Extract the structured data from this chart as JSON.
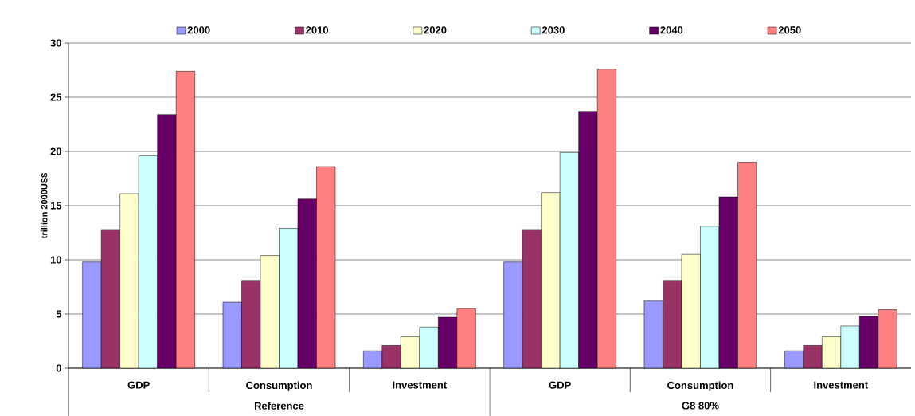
{
  "chart_data": {
    "type": "bar",
    "ylabel": "trillion 2000US$",
    "categories": [
      "GDP",
      "Consumption",
      "Investment",
      "GDP",
      "Consumption",
      "Investment"
    ],
    "series": [
      {
        "name": "2000",
        "color": "#9999ff",
        "values": [
          9.8,
          6.1,
          1.6,
          9.8,
          6.2,
          1.6
        ]
      },
      {
        "name": "2010",
        "color": "#993366",
        "values": [
          12.8,
          8.1,
          2.1,
          12.8,
          8.1,
          2.1
        ]
      },
      {
        "name": "2020",
        "color": "#ffffcc",
        "values": [
          16.1,
          10.4,
          2.9,
          16.2,
          10.5,
          2.9
        ]
      },
      {
        "name": "2030",
        "color": "#ccffff",
        "values": [
          19.6,
          12.9,
          3.8,
          19.9,
          13.1,
          3.9
        ]
      },
      {
        "name": "2040",
        "color": "#660066",
        "values": [
          23.4,
          15.6,
          4.7,
          23.7,
          15.8,
          4.8
        ]
      },
      {
        "name": "2050",
        "color": "#ff8080",
        "values": [
          27.4,
          18.6,
          5.5,
          27.6,
          19.0,
          5.4
        ]
      }
    ],
    "ylim": [
      0,
      30
    ],
    "yticks": [
      0,
      5,
      10,
      15,
      20,
      25,
      30
    ],
    "grid": "y",
    "legend": "top",
    "annotations": [
      "Reference",
      "G8 80%"
    ]
  }
}
